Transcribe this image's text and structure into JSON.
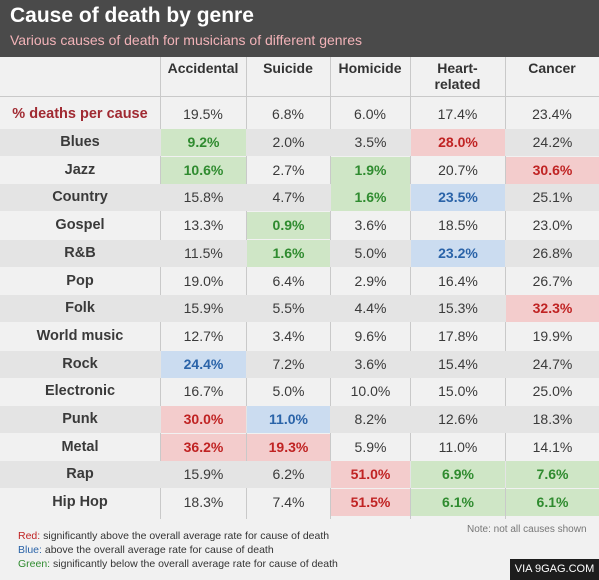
{
  "header": {
    "title": "Cause of death by genre",
    "subtitle": "Various causes of death for musicians of different genres"
  },
  "chart_data": {
    "type": "table",
    "title": "Cause of death by genre",
    "subtitle": "Various causes of death for musicians of different genres",
    "columns": [
      "Accidental",
      "Suicide",
      "Homicide",
      "Heart-related",
      "Cancer"
    ],
    "column_display": [
      [
        "Accidental"
      ],
      [
        "Suicide"
      ],
      [
        "Homicide"
      ],
      [
        "Heart-",
        "related"
      ],
      [
        "Cancer"
      ]
    ],
    "overall_label": "% deaths per cause",
    "overall": [
      "19.5%",
      "6.8%",
      "6.0%",
      "17.4%",
      "23.4%"
    ],
    "rows": [
      {
        "genre": "Blues",
        "values": [
          "9.2%",
          "2.0%",
          "3.5%",
          "28.0%",
          "24.2%"
        ],
        "flags": [
          "green",
          "",
          "",
          "red",
          ""
        ]
      },
      {
        "genre": "Jazz",
        "values": [
          "10.6%",
          "2.7%",
          "1.9%",
          "20.7%",
          "30.6%"
        ],
        "flags": [
          "green",
          "",
          "green",
          "",
          "red"
        ]
      },
      {
        "genre": "Country",
        "values": [
          "15.8%",
          "4.7%",
          "1.6%",
          "23.5%",
          "25.1%"
        ],
        "flags": [
          "",
          "",
          "green",
          "blue",
          ""
        ]
      },
      {
        "genre": "Gospel",
        "values": [
          "13.3%",
          "0.9%",
          "3.6%",
          "18.5%",
          "23.0%"
        ],
        "flags": [
          "",
          "green",
          "",
          "",
          ""
        ]
      },
      {
        "genre": "R&B",
        "values": [
          "11.5%",
          "1.6%",
          "5.0%",
          "23.2%",
          "26.8%"
        ],
        "flags": [
          "",
          "green",
          "",
          "blue",
          ""
        ]
      },
      {
        "genre": "Pop",
        "values": [
          "19.0%",
          "6.4%",
          "2.9%",
          "16.4%",
          "26.7%"
        ],
        "flags": [
          "",
          "",
          "",
          "",
          ""
        ]
      },
      {
        "genre": "Folk",
        "values": [
          "15.9%",
          "5.5%",
          "4.4%",
          "15.3%",
          "32.3%"
        ],
        "flags": [
          "",
          "",
          "",
          "",
          "red"
        ]
      },
      {
        "genre": "World music",
        "values": [
          "12.7%",
          "3.4%",
          "9.6%",
          "17.8%",
          "19.9%"
        ],
        "flags": [
          "",
          "",
          "",
          "",
          ""
        ]
      },
      {
        "genre": "Rock",
        "values": [
          "24.4%",
          "7.2%",
          "3.6%",
          "15.4%",
          "24.7%"
        ],
        "flags": [
          "blue",
          "",
          "",
          "",
          ""
        ]
      },
      {
        "genre": "Electronic",
        "values": [
          "16.7%",
          "5.0%",
          "10.0%",
          "15.0%",
          "25.0%"
        ],
        "flags": [
          "",
          "",
          "",
          "",
          ""
        ]
      },
      {
        "genre": "Punk",
        "values": [
          "30.0%",
          "11.0%",
          "8.2%",
          "12.6%",
          "18.3%"
        ],
        "flags": [
          "red",
          "blue",
          "",
          "",
          ""
        ]
      },
      {
        "genre": "Metal",
        "values": [
          "36.2%",
          "19.3%",
          "5.9%",
          "11.0%",
          "14.1%"
        ],
        "flags": [
          "red",
          "red",
          "",
          "",
          ""
        ]
      },
      {
        "genre": "Rap",
        "values": [
          "15.9%",
          "6.2%",
          "51.0%",
          "6.9%",
          "7.6%"
        ],
        "flags": [
          "",
          "",
          "red",
          "green",
          "green"
        ]
      },
      {
        "genre": "Hip Hop",
        "values": [
          "18.3%",
          "7.4%",
          "51.5%",
          "6.1%",
          "6.1%"
        ],
        "flags": [
          "",
          "",
          "red",
          "green",
          "green"
        ]
      }
    ],
    "flag_colors": {
      "red": "#c02323",
      "blue": "#2a63a8",
      "green": "#2f8b2f"
    }
  },
  "legend": [
    {
      "key": "Red:",
      "text": " significantly above the overall average rate for cause of death",
      "color": "red"
    },
    {
      "key": "Blue:",
      "text": " above the overall average rate for cause of death",
      "color": "blue"
    },
    {
      "key": "Green:",
      "text": " significantly below the overall average rate for cause of death",
      "color": "green"
    }
  ],
  "note": "Note: not all causes shown",
  "watermark": "VIA 9GAG.COM"
}
